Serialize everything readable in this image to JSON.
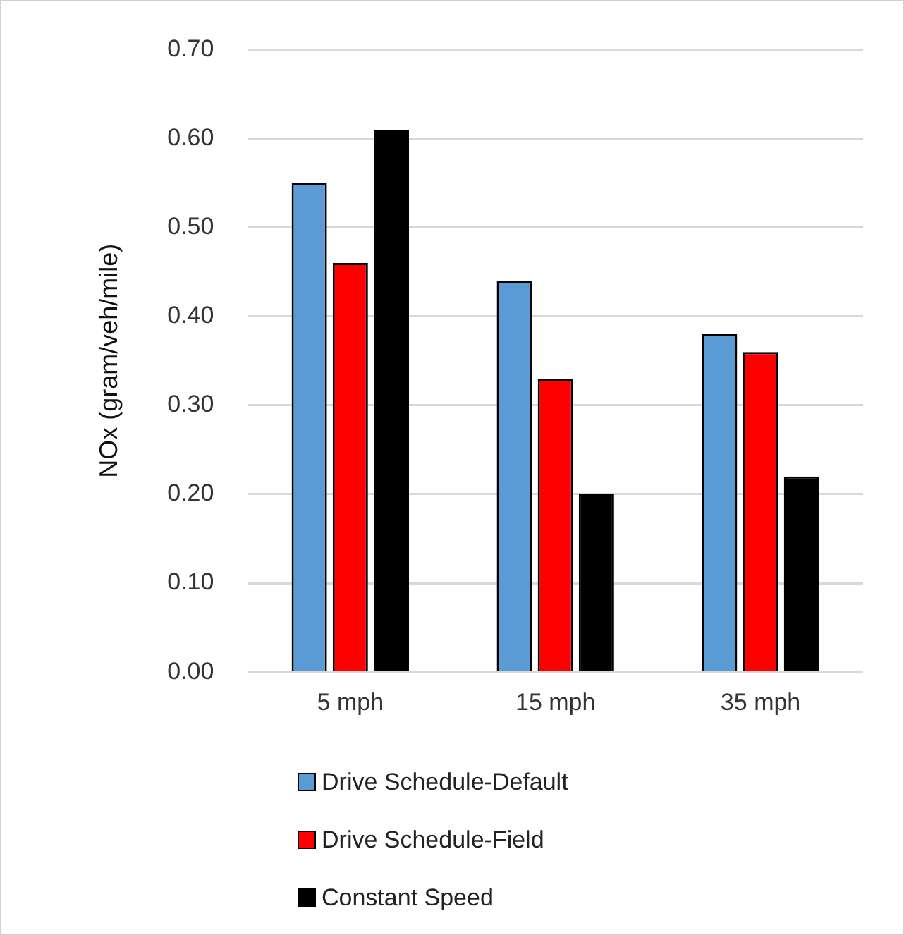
{
  "chart_data": {
    "type": "bar",
    "ylabel": "NOx (gram/veh/mile)",
    "categories": [
      "5 mph",
      "15 mph",
      "35 mph"
    ],
    "series": [
      {
        "name": "Drive Schedule-Default",
        "color": "#5b9bd5",
        "values": [
          0.55,
          0.44,
          0.38
        ]
      },
      {
        "name": "Drive Schedule-Field",
        "color": "#ff0000",
        "values": [
          0.46,
          0.33,
          0.36
        ]
      },
      {
        "name": "Constant Speed",
        "color": "#000000",
        "values": [
          0.61,
          0.2,
          0.22
        ]
      }
    ],
    "ylim": [
      0,
      0.7
    ],
    "yticks": [
      {
        "value": 0,
        "label": "0.00"
      },
      {
        "value": 0.1,
        "label": "0.10"
      },
      {
        "value": 0.2,
        "label": "0.20"
      },
      {
        "value": 0.3,
        "label": "0.30"
      },
      {
        "value": 0.4,
        "label": "0.40"
      },
      {
        "value": 0.5,
        "label": "0.50"
      },
      {
        "value": 0.6,
        "label": "0.60"
      },
      {
        "value": 0.7,
        "label": "0.70"
      }
    ],
    "grid": "y",
    "legend": "bottom"
  }
}
